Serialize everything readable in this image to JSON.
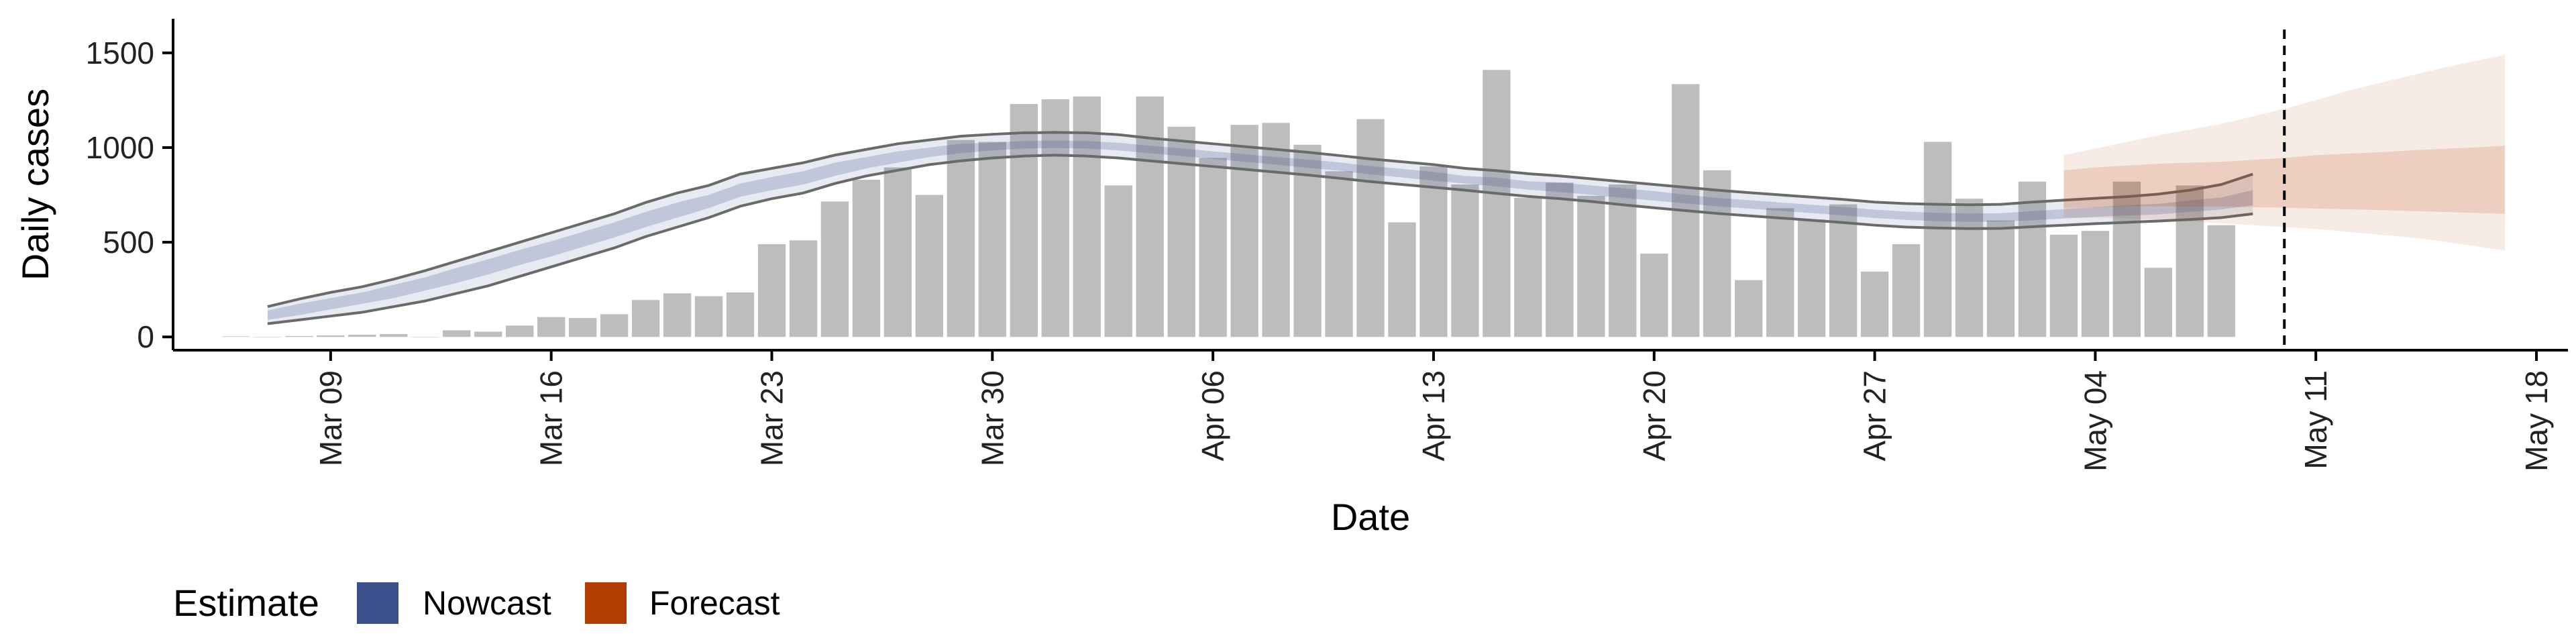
{
  "chart_data": {
    "type": "bar",
    "xlabel": "Date",
    "ylabel": "Daily cases",
    "x_tick_labels": [
      "Mar 09",
      "Mar 16",
      "Mar 23",
      "Mar 30",
      "Apr 06",
      "Apr 13",
      "Apr 20",
      "Apr 27",
      "May 04",
      "May 11",
      "May 18"
    ],
    "x_tick_dates": [
      "2020-03-09",
      "2020-03-16",
      "2020-03-23",
      "2020-03-30",
      "2020-04-06",
      "2020-04-13",
      "2020-04-20",
      "2020-04-27",
      "2020-05-04",
      "2020-05-11",
      "2020-05-18"
    ],
    "y_ticks": [
      0,
      500,
      1000,
      1500
    ],
    "xlim": [
      "2020-03-04",
      "2020-05-19"
    ],
    "ylim": [
      -70,
      1680
    ],
    "reference_line_date": "2020-05-10",
    "bar_color": "#bdbdbd",
    "bars": {
      "start_date": "2020-03-06",
      "values": [
        3,
        0,
        5,
        8,
        12,
        15,
        0,
        35,
        28,
        60,
        105,
        100,
        120,
        195,
        230,
        215,
        235,
        490,
        510,
        715,
        830,
        895,
        750,
        1040,
        1030,
        1230,
        1255,
        1270,
        800,
        1270,
        1110,
        945,
        1120,
        1130,
        1015,
        875,
        1150,
        605,
        900,
        805,
        1410,
        735,
        815,
        745,
        805,
        440,
        1335,
        880,
        300,
        680,
        620,
        700,
        345,
        490,
        1030,
        730,
        615,
        820,
        540,
        560,
        820,
        365,
        800,
        590
      ]
    },
    "nowcast": {
      "color": "#3b4f8a",
      "start_date": "2020-03-07",
      "median": [
        115,
        145,
        175,
        205,
        240,
        280,
        325,
        370,
        420,
        465,
        515,
        565,
        620,
        670,
        715,
        775,
        810,
        840,
        885,
        920,
        950,
        975,
        995,
        1005,
        1015,
        1017,
        1015,
        1005,
        990,
        975,
        960,
        945,
        930,
        915,
        900,
        880,
        865,
        848,
        830,
        818,
        800,
        790,
        775,
        760,
        745,
        728,
        712,
        700,
        688,
        676,
        664,
        650,
        640,
        633,
        630,
        631,
        640,
        650,
        660,
        668,
        675,
        690,
        705,
        735
      ],
      "inner_lower": [
        90,
        115,
        145,
        175,
        205,
        245,
        285,
        330,
        380,
        425,
        475,
        525,
        580,
        630,
        680,
        740,
        775,
        805,
        850,
        890,
        920,
        950,
        970,
        985,
        995,
        997,
        995,
        985,
        970,
        955,
        940,
        925,
        910,
        893,
        878,
        858,
        842,
        825,
        810,
        795,
        778,
        765,
        750,
        735,
        720,
        705,
        690,
        678,
        666,
        654,
        642,
        628,
        618,
        611,
        608,
        609,
        616,
        625,
        634,
        641,
        647,
        660,
        673,
        695
      ],
      "inner_upper": [
        140,
        175,
        205,
        235,
        275,
        315,
        365,
        410,
        460,
        505,
        555,
        605,
        660,
        710,
        750,
        810,
        845,
        875,
        920,
        950,
        980,
        1000,
        1020,
        1025,
        1035,
        1037,
        1035,
        1025,
        1010,
        995,
        980,
        965,
        950,
        937,
        922,
        902,
        888,
        871,
        850,
        841,
        822,
        815,
        800,
        785,
        770,
        751,
        734,
        722,
        710,
        698,
        686,
        672,
        662,
        655,
        652,
        653,
        664,
        675,
        686,
        695,
        703,
        720,
        737,
        775
      ],
      "outer_lower": [
        70,
        90,
        110,
        130,
        160,
        190,
        230,
        270,
        320,
        370,
        420,
        470,
        530,
        580,
        630,
        690,
        730,
        760,
        810,
        850,
        880,
        910,
        930,
        945,
        955,
        960,
        955,
        945,
        930,
        915,
        900,
        885,
        870,
        855,
        838,
        820,
        805,
        790,
        775,
        758,
        742,
        730,
        715,
        698,
        682,
        667,
        652,
        640,
        628,
        616,
        604,
        590,
        580,
        575,
        572,
        573,
        582,
        590,
        598,
        605,
        612,
        620,
        630,
        650
      ],
      "outer_upper": [
        160,
        200,
        235,
        265,
        305,
        350,
        400,
        450,
        500,
        550,
        600,
        650,
        710,
        760,
        800,
        860,
        890,
        920,
        960,
        990,
        1020,
        1040,
        1060,
        1070,
        1078,
        1080,
        1078,
        1068,
        1050,
        1035,
        1020,
        1005,
        990,
        975,
        958,
        940,
        925,
        910,
        890,
        878,
        862,
        850,
        835,
        820,
        805,
        790,
        775,
        762,
        750,
        738,
        726,
        712,
        704,
        700,
        698,
        700,
        712,
        722,
        732,
        741,
        754,
        775,
        805,
        860
      ]
    },
    "forecast": {
      "color": "#b33d00",
      "start_date": "2020-05-03",
      "median": [
        800,
        798,
        795,
        800,
        805,
        808,
        812,
        815,
        820,
        825,
        830,
        834,
        838,
        840,
        842
      ],
      "inner_lower": [
        680,
        685,
        690,
        690,
        690,
        688,
        685,
        682,
        678,
        674,
        670,
        665,
        660,
        655,
        650
      ],
      "inner_upper": [
        880,
        895,
        905,
        915,
        920,
        925,
        935,
        945,
        960,
        968,
        975,
        985,
        993,
        1000,
        1010
      ],
      "outer_lower": [
        630,
        630,
        625,
        620,
        610,
        600,
        590,
        580,
        570,
        555,
        540,
        525,
        505,
        480,
        455
      ],
      "outer_upper": [
        960,
        995,
        1030,
        1065,
        1095,
        1125,
        1165,
        1205,
        1250,
        1300,
        1340,
        1380,
        1420,
        1455,
        1490
      ]
    },
    "legend": {
      "title": "Estimate",
      "items": [
        {
          "label": "Nowcast",
          "color": "#3b4f8a"
        },
        {
          "label": "Forecast",
          "color": "#b33d00"
        }
      ]
    }
  }
}
